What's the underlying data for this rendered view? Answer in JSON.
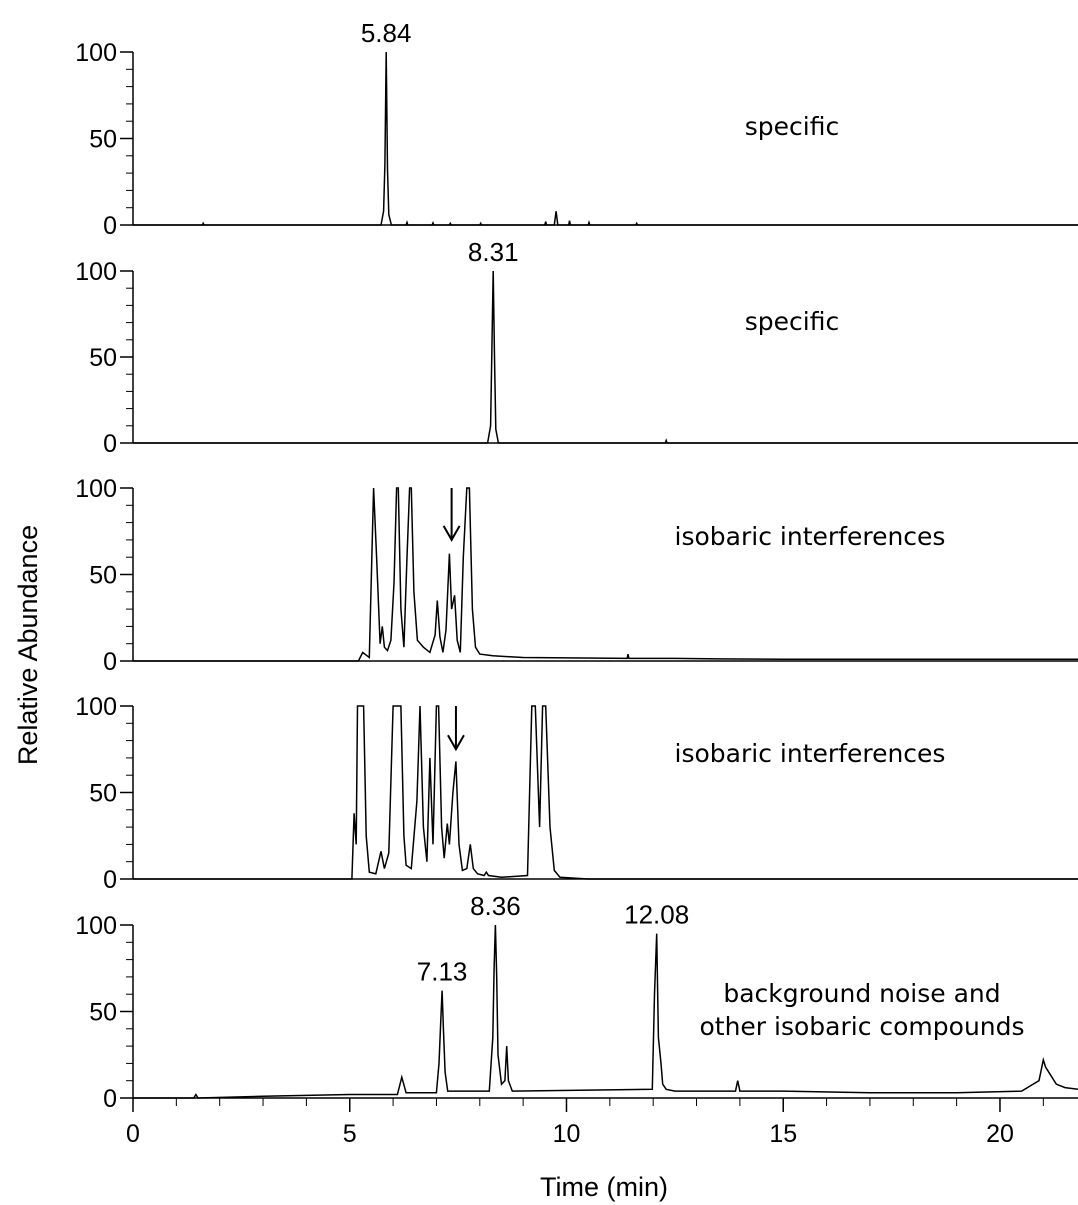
{
  "chart_data": {
    "type": "line",
    "xlabel": "Time (min)",
    "ylabel": "Relative Abundance",
    "xlim": [
      0,
      21.8
    ],
    "xticks": [
      "0",
      "5",
      "10",
      "15",
      "20"
    ],
    "xtick_values": [
      0,
      5,
      10,
      15,
      20
    ],
    "minor_xtick_step": 1,
    "shared_x_axis": true,
    "grid": false,
    "panels": [
      {
        "annotation": [
          "specific"
        ],
        "ylim": [
          0,
          100
        ],
        "yticks": [
          "0",
          "50",
          "100"
        ],
        "ytick_values": [
          0,
          50,
          100
        ],
        "peak_labels": [
          {
            "text": "5.84",
            "x": 5.84,
            "y": 100
          }
        ],
        "arrows": [],
        "x": [
          0,
          1.6,
          1.62,
          1.64,
          5.72,
          5.78,
          5.81,
          5.84,
          5.87,
          5.9,
          5.96,
          6.3,
          6.32,
          6.34,
          6.9,
          6.92,
          6.94,
          7.3,
          7.32,
          7.34,
          8.0,
          8.02,
          8.04,
          9.5,
          9.52,
          9.54,
          9.72,
          9.76,
          9.8,
          10.05,
          10.07,
          10.09,
          10.5,
          10.52,
          10.54,
          11.6,
          11.62,
          11.64,
          21.8
        ],
        "y": [
          0,
          0,
          1,
          0,
          0,
          8,
          35,
          100,
          32,
          6,
          0,
          0,
          1.5,
          0,
          0,
          1.2,
          0,
          0,
          1,
          0,
          0,
          1,
          0,
          0,
          2,
          0,
          0,
          8,
          0,
          0,
          2.5,
          0,
          0,
          1.5,
          0,
          0,
          1,
          0,
          0
        ]
      },
      {
        "annotation": [
          "specific"
        ],
        "ylim": [
          0,
          100
        ],
        "yticks": [
          "0",
          "50",
          "100"
        ],
        "ytick_values": [
          0,
          50,
          100
        ],
        "peak_labels": [
          {
            "text": "8.31",
            "x": 8.31,
            "y": 100
          }
        ],
        "arrows": [],
        "x": [
          0,
          8.18,
          8.25,
          8.28,
          8.31,
          8.34,
          8.37,
          8.43,
          12.28,
          12.3,
          12.32,
          21.8
        ],
        "y": [
          0,
          0,
          10,
          55,
          100,
          50,
          8,
          0,
          0,
          1.5,
          0,
          0
        ]
      },
      {
        "annotation": [
          "isobaric interferences"
        ],
        "ylim": [
          0,
          100
        ],
        "yticks": [
          "0",
          "50",
          "100"
        ],
        "ytick_values": [
          0,
          50,
          100
        ],
        "peak_labels": [],
        "arrows": [
          {
            "x": 7.35,
            "y_from": 100,
            "y_to": 70
          }
        ],
        "x": [
          0,
          5.2,
          5.3,
          5.4,
          5.45,
          5.5,
          5.55,
          5.62,
          5.7,
          5.75,
          5.8,
          5.87,
          5.95,
          6.02,
          6.08,
          6.12,
          6.18,
          6.25,
          6.32,
          6.38,
          6.42,
          6.48,
          6.56,
          6.7,
          6.85,
          6.97,
          7.02,
          7.08,
          7.15,
          7.22,
          7.3,
          7.35,
          7.42,
          7.48,
          7.55,
          7.62,
          7.7,
          7.76,
          7.83,
          7.9,
          8.0,
          8.3,
          9.0,
          11.4,
          11.42,
          11.44,
          12.5,
          13.5,
          15.0,
          17.0,
          19.0,
          21.8
        ],
        "y": [
          0,
          0,
          5,
          3,
          2,
          50,
          100,
          60,
          10,
          20,
          8,
          6,
          12,
          45,
          100,
          100,
          30,
          8,
          60,
          100,
          100,
          40,
          12,
          8,
          5,
          15,
          35,
          14,
          5,
          18,
          62,
          30,
          38,
          12,
          5,
          60,
          100,
          100,
          30,
          8,
          4,
          3,
          2,
          1.5,
          4,
          1.5,
          1.5,
          1.2,
          1,
          1,
          1,
          1
        ]
      },
      {
        "annotation": [
          "isobaric interferences"
        ],
        "ylim": [
          0,
          100
        ],
        "yticks": [
          "0",
          "50",
          "100"
        ],
        "ytick_values": [
          0,
          50,
          100
        ],
        "peak_labels": [],
        "arrows": [
          {
            "x": 7.45,
            "y_from": 100,
            "y_to": 75
          }
        ],
        "x": [
          0,
          5.05,
          5.1,
          5.15,
          5.18,
          5.22,
          5.28,
          5.32,
          5.38,
          5.45,
          5.6,
          5.72,
          5.8,
          5.9,
          6.0,
          6.05,
          6.12,
          6.18,
          6.25,
          6.3,
          6.42,
          6.55,
          6.62,
          6.7,
          6.78,
          6.85,
          6.92,
          7.0,
          7.05,
          7.12,
          7.18,
          7.25,
          7.3,
          7.38,
          7.45,
          7.52,
          7.6,
          7.7,
          7.78,
          7.85,
          7.95,
          8.1,
          8.15,
          8.2,
          8.5,
          9.1,
          9.2,
          9.28,
          9.38,
          9.45,
          9.52,
          9.62,
          9.72,
          9.85,
          10.5,
          21.8
        ],
        "y": [
          0,
          0,
          38,
          20,
          100,
          100,
          100,
          100,
          25,
          4,
          3,
          16,
          6,
          15,
          100,
          100,
          100,
          100,
          25,
          8,
          6,
          45,
          100,
          30,
          10,
          70,
          20,
          100,
          100,
          30,
          12,
          32,
          20,
          50,
          68,
          20,
          5,
          6,
          20,
          6,
          3,
          2,
          4,
          2,
          1,
          2,
          100,
          100,
          30,
          100,
          100,
          30,
          5,
          1,
          0,
          0
        ]
      },
      {
        "annotation": [
          "background noise and",
          "other isobaric compounds"
        ],
        "ylim": [
          0,
          100
        ],
        "yticks": [
          "0",
          "50",
          "100"
        ],
        "ytick_values": [
          0,
          50,
          100
        ],
        "peak_labels": [
          {
            "text": "7.13",
            "x": 7.13,
            "y": 62
          },
          {
            "text": "8.36",
            "x": 8.36,
            "y": 100
          },
          {
            "text": "12.08",
            "x": 12.08,
            "y": 95
          }
        ],
        "arrows": [],
        "x": [
          0,
          1.4,
          1.45,
          1.5,
          3.0,
          5.0,
          6.1,
          6.2,
          6.3,
          7.0,
          7.06,
          7.1,
          7.13,
          7.16,
          7.2,
          7.26,
          8.22,
          8.3,
          8.33,
          8.36,
          8.39,
          8.42,
          8.5,
          8.58,
          8.62,
          8.66,
          8.75,
          11.98,
          12.03,
          12.08,
          12.12,
          12.18,
          12.22,
          12.3,
          12.5,
          13.9,
          13.95,
          14.0,
          15.0,
          17.0,
          19.0,
          20.5,
          20.9,
          21.0,
          21.05,
          21.15,
          21.3,
          21.5,
          21.8
        ],
        "y": [
          0,
          0,
          2,
          0,
          1,
          2,
          2,
          12,
          3,
          3,
          20,
          45,
          62,
          40,
          15,
          4,
          4,
          35,
          75,
          100,
          70,
          25,
          8,
          10,
          30,
          10,
          4,
          5,
          60,
          95,
          35,
          20,
          8,
          5,
          4,
          4,
          10,
          4,
          4,
          3,
          3,
          4,
          10,
          22,
          18,
          14,
          8,
          6,
          5
        ]
      }
    ]
  }
}
